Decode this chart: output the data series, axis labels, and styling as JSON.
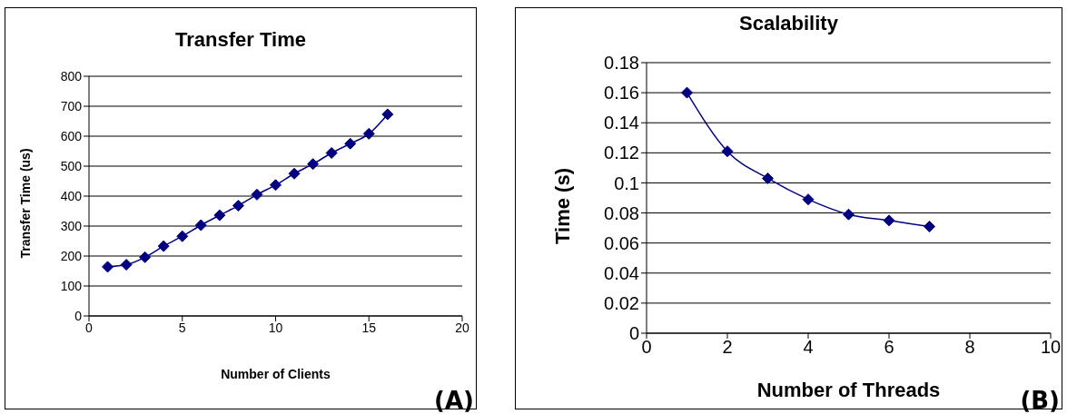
{
  "chart_data": [
    {
      "type": "line",
      "title": "Transfer Time",
      "xlabel": "Number of Clients",
      "ylabel": "Transfer Time (us)",
      "x": [
        1,
        2,
        3,
        4,
        5,
        6,
        7,
        8,
        9,
        10,
        11,
        12,
        13,
        14,
        15,
        16
      ],
      "series": [
        {
          "color": "#000080",
          "values": [
            164,
            171,
            196,
            233,
            266,
            303,
            336,
            368,
            405,
            437,
            475,
            507,
            544,
            575,
            608,
            673
          ]
        }
      ],
      "xlim": [
        0,
        20
      ],
      "xticks": [
        0,
        5,
        10,
        15,
        20
      ],
      "ylim": [
        0,
        800
      ],
      "yticks": [
        0,
        100,
        200,
        300,
        400,
        500,
        600,
        700,
        800
      ],
      "grid": "y",
      "marker": "diamond",
      "line_style": "solid",
      "annotations": [
        "(A)"
      ]
    },
    {
      "type": "line",
      "title": "Scalability",
      "xlabel": "Number of Threads",
      "ylabel": "Time (s)",
      "x": [
        1,
        2,
        3,
        4,
        5,
        6,
        7
      ],
      "series": [
        {
          "color": "#000080",
          "values": [
            0.16,
            0.121,
            0.103,
            0.089,
            0.079,
            0.075,
            0.071
          ]
        }
      ],
      "xlim": [
        0,
        10
      ],
      "xticks": [
        0,
        2,
        4,
        6,
        8,
        10
      ],
      "ylim": [
        0,
        0.18
      ],
      "yticks": [
        0,
        0.02,
        0.04,
        0.06,
        0.08,
        0.1,
        0.12,
        0.14,
        0.16,
        0.18
      ],
      "grid": "y",
      "marker": "diamond",
      "line_style": "solid",
      "annotations": [
        "(B)"
      ]
    }
  ]
}
